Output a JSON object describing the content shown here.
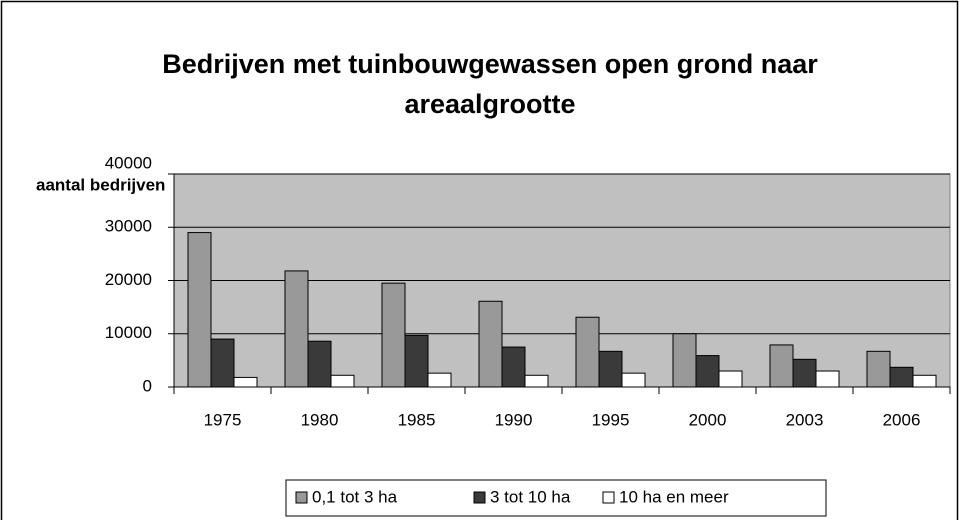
{
  "chart_data": {
    "type": "bar",
    "title": "Bedrijven met tuinbouwgewassen open grond naar areaalgrootte",
    "y_label": "aantal bedrijven",
    "categories": [
      "1975",
      "1980",
      "1985",
      "1990",
      "1995",
      "2000",
      "2003",
      "2006"
    ],
    "series": [
      {
        "name": "0,1 tot 3 ha",
        "color": "#999999",
        "values": [
          29000,
          21800,
          19500,
          16100,
          13100,
          10000,
          7900,
          6700
        ]
      },
      {
        "name": "3 tot 10 ha",
        "color": "#3a3a3a",
        "values": [
          9000,
          8600,
          9700,
          7500,
          6700,
          5900,
          5200,
          3700
        ]
      },
      {
        "name": "10 ha en meer",
        "color": "#ffffff",
        "values": [
          1800,
          2200,
          2600,
          2200,
          2600,
          3000,
          3000,
          2200
        ]
      }
    ],
    "ylim": [
      0,
      40000
    ],
    "yticks": [
      0,
      10000,
      20000,
      30000,
      40000
    ],
    "grid": true,
    "plot_background": "#c0c0c0",
    "legend": "bottom"
  }
}
